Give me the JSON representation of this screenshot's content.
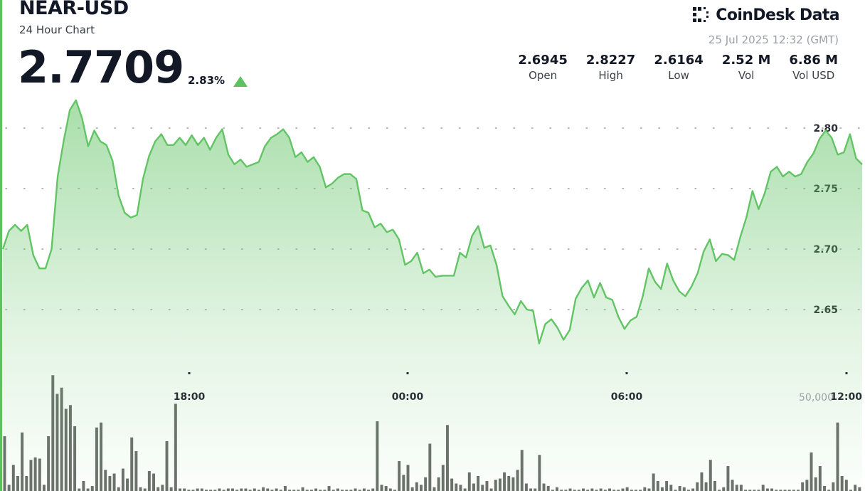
{
  "header": {
    "pair": "NEAR-USD",
    "subtitle": "24 Hour Chart",
    "price": "2.7709",
    "change": "2.83%",
    "change_direction": "up"
  },
  "brand": {
    "name": "CoinDesk Data",
    "icon": "coindesk-logo-icon",
    "timestamp": "25 Jul 2025 12:32 (GMT)"
  },
  "stats": [
    {
      "value": "2.6945",
      "label": "Open"
    },
    {
      "value": "2.8227",
      "label": "High"
    },
    {
      "value": "2.6164",
      "label": "Low"
    },
    {
      "value": "2.52 M",
      "label": "Vol"
    },
    {
      "value": "6.86 M",
      "label": "Vol USD"
    }
  ],
  "colors": {
    "accent": "#5cc15f",
    "line": "#63c466",
    "volume_bar": "#6b6f6b",
    "text": "#121826"
  },
  "chart_data": {
    "type": "line",
    "title": "NEAR-USD",
    "subtitle": "24 Hour Chart",
    "x_ticks": [
      "18:00",
      "00:00",
      "06:00",
      "12:00"
    ],
    "y_ticks": [
      "2.65",
      "2.70",
      "2.75",
      "2.80"
    ],
    "ylim": [
      2.6,
      2.83
    ],
    "grid": true,
    "series": [
      {
        "values": [
          2.7,
          2.715,
          2.72,
          2.715,
          2.72,
          2.695,
          2.684,
          2.684,
          2.7,
          2.76,
          2.79,
          2.815,
          2.823,
          2.808,
          2.785,
          2.798,
          2.789,
          2.786,
          2.773,
          2.744,
          2.73,
          2.726,
          2.728,
          2.758,
          2.777,
          2.789,
          2.795,
          2.786,
          2.786,
          2.792,
          2.786,
          2.794,
          2.786,
          2.792,
          2.782,
          2.792,
          2.799,
          2.778,
          2.77,
          2.774,
          2.768,
          2.77,
          2.772,
          2.785,
          2.792,
          2.795,
          2.799,
          2.792,
          2.776,
          2.78,
          2.772,
          2.776,
          2.768,
          2.751,
          2.754,
          2.759,
          2.762,
          2.762,
          2.758,
          2.732,
          2.73,
          2.718,
          2.721,
          2.714,
          2.716,
          2.708,
          2.687,
          2.69,
          2.697,
          2.68,
          2.683,
          2.677,
          2.678,
          2.678,
          2.678,
          2.697,
          2.693,
          2.711,
          2.719,
          2.701,
          2.703,
          2.687,
          2.661,
          2.653,
          2.646,
          2.657,
          2.65,
          2.649,
          2.622,
          2.638,
          2.642,
          2.635,
          2.625,
          2.633,
          2.659,
          2.668,
          2.674,
          2.66,
          2.672,
          2.66,
          2.658,
          2.644,
          2.634,
          2.641,
          2.644,
          2.661,
          2.684,
          2.673,
          2.667,
          2.688,
          2.674,
          2.665,
          2.661,
          2.669,
          2.68,
          2.698,
          2.708,
          2.69,
          2.696,
          2.695,
          2.691,
          2.71,
          2.726,
          2.748,
          2.733,
          2.746,
          2.764,
          2.768,
          2.76,
          2.764,
          2.76,
          2.762,
          2.772,
          2.779,
          2.791,
          2.798,
          2.792,
          2.778,
          2.78,
          2.795,
          2.775,
          2.77
        ]
      },
      {
        "name": "Volume",
        "values": [
          44,
          5,
          21,
          12,
          47,
          12,
          25,
          27,
          26,
          5,
          44,
          93,
          78,
          83,
          66,
          69,
          52,
          2,
          8,
          2,
          4,
          51,
          55,
          17,
          12,
          14,
          3,
          18,
          10,
          43,
          32,
          3,
          2,
          16,
          14,
          3,
          5,
          40,
          3,
          70,
          2,
          2,
          1,
          1,
          2,
          2,
          1,
          1,
          1,
          2,
          1,
          2,
          2,
          1,
          2,
          2,
          1,
          2,
          1,
          3,
          2,
          1,
          2,
          1,
          4,
          1,
          1,
          1,
          3,
          1,
          1,
          2,
          1,
          1,
          4,
          1,
          2,
          1,
          1,
          1,
          2,
          1,
          2,
          1,
          2,
          56,
          5,
          4,
          2,
          1,
          24,
          13,
          21,
          3,
          7,
          5,
          11,
          38,
          3,
          11,
          21,
          53,
          10,
          6,
          5,
          2,
          15,
          6,
          12,
          5,
          8,
          2,
          9,
          10,
          15,
          12,
          11,
          17,
          33,
          6,
          2,
          2,
          29,
          6,
          4,
          1,
          3,
          1,
          1,
          2,
          1,
          1,
          2,
          1,
          2,
          1,
          2,
          1,
          2,
          1,
          1,
          2,
          3,
          1,
          1,
          1,
          3,
          2,
          14,
          8,
          3,
          8,
          5,
          1,
          4,
          3,
          1,
          2,
          7,
          15,
          7,
          25,
          8,
          1,
          3,
          20,
          9,
          5,
          5,
          1,
          1,
          1,
          1,
          5,
          2,
          2,
          1,
          1,
          1,
          1,
          1,
          1,
          7,
          9,
          31,
          11,
          20,
          4,
          1,
          7,
          55,
          12,
          9,
          1,
          5,
          3
        ]
      }
    ],
    "volume_tick": "50,000"
  }
}
